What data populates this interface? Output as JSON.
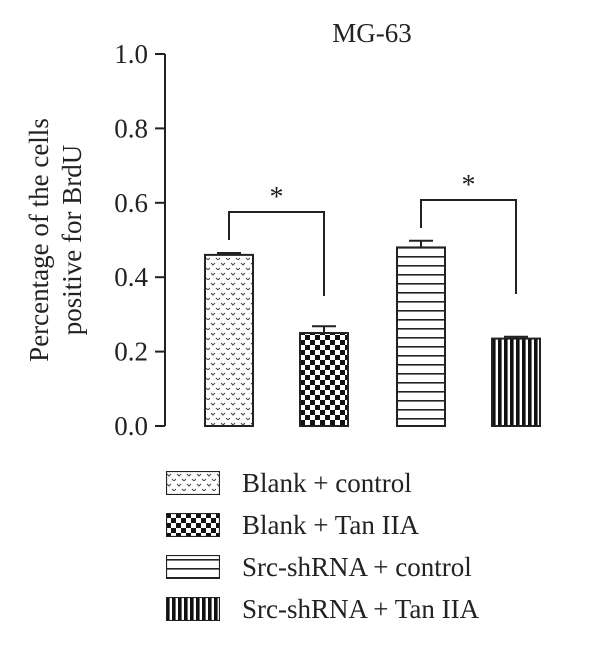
{
  "chart_data": {
    "type": "bar",
    "title": "MG-63",
    "ylabel": "Percentage of the cells positive for BrdU",
    "ylabel_lines": [
      "Percentage of the cells",
      "positive for BrdU"
    ],
    "xlabel": "",
    "ylim": [
      0,
      1.0
    ],
    "yticks": [
      "0.0",
      "0.2",
      "0.4",
      "0.6",
      "0.8",
      "1.0"
    ],
    "categories": [
      "Blank + control",
      "Blank + Tan IIA",
      "Src-shRNA + control",
      "Src-shRNA + Tan IIA"
    ],
    "values": [
      0.46,
      0.25,
      0.48,
      0.235
    ],
    "errors": [
      0.005,
      0.018,
      0.018,
      0.005
    ],
    "patterns": [
      "dots",
      "checker",
      "horizontal-lines",
      "vertical-lines"
    ],
    "significance": [
      {
        "pair": [
          0,
          1
        ],
        "label": "*"
      },
      {
        "pair": [
          2,
          3
        ],
        "label": "*"
      }
    ],
    "legend_placement": "bottom",
    "grid": false
  }
}
